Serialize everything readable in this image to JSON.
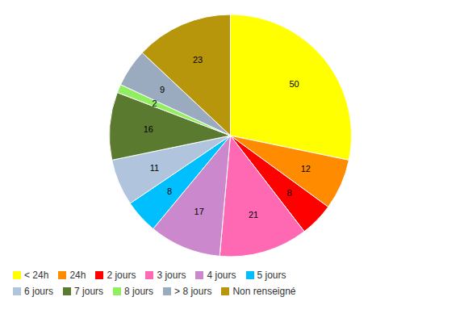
{
  "chart_data": {
    "type": "pie",
    "categories": [
      "< 24h",
      "24h",
      "2 jours",
      "3 jours",
      "4 jours",
      "5 jours",
      "6 jours",
      "7 jours",
      "8 jours",
      "> 8 jours",
      "Non renseigné"
    ],
    "values": [
      50,
      12,
      8,
      21,
      17,
      8,
      11,
      16,
      2,
      9,
      23
    ],
    "colors": [
      "#FFFF00",
      "#FF8C00",
      "#FF0000",
      "#FF69B4",
      "#CC88CC",
      "#00BFFF",
      "#B0C4DE",
      "#5A7A30",
      "#90EE60",
      "#9AABBF",
      "#B8960C"
    ],
    "data_labels": true,
    "legend": "bottom"
  }
}
